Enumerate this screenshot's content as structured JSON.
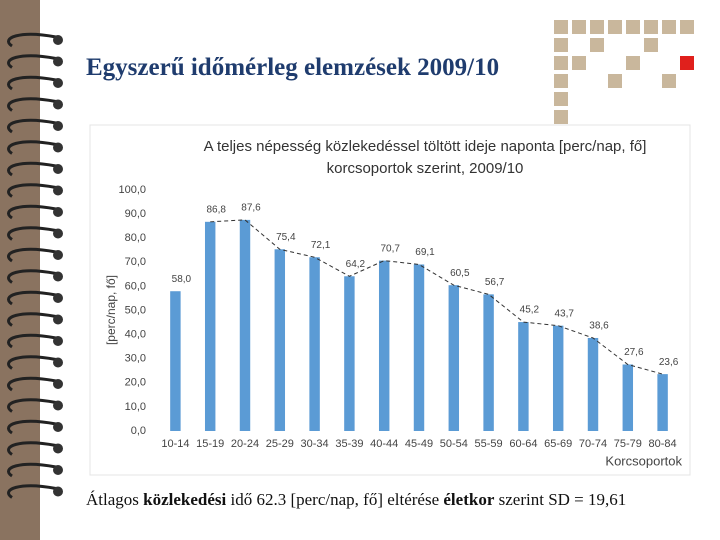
{
  "header": {
    "title": "Egyszerű időmérleg elemzések 2009/10"
  },
  "chart_data": {
    "type": "bar",
    "title": "A teljes népesség közlekedéssel töltött ideje naponta [perc/nap, fő] korcsoportok szerint, 2009/10",
    "ylabel": "[perc/nap, fő]",
    "xlabel": "Korcsoportok",
    "categories": [
      "10-14",
      "15-19",
      "20-24",
      "25-29",
      "30-34",
      "35-39",
      "40-44",
      "45-49",
      "50-54",
      "55-59",
      "60-64",
      "65-69",
      "70-74",
      "75-79",
      "80-84"
    ],
    "values": [
      58.0,
      86.8,
      87.6,
      75.4,
      72.1,
      64.2,
      70.7,
      69.1,
      60.5,
      56.7,
      45.2,
      43.7,
      38.6,
      27.6,
      23.6
    ],
    "value_labels": [
      "58,0",
      "86,8",
      "87,6",
      "75,4",
      "72,1",
      "64,2",
      "70,7",
      "69,1",
      "60,5",
      "56,7",
      "45,2",
      "43,7",
      "38,6",
      "27,6",
      "23,6"
    ],
    "color": "#5b9bd5",
    "ylim": [
      0,
      100
    ],
    "yticks": [
      {
        "value": 0,
        "label": "0,0"
      },
      {
        "value": 10,
        "label": "10,0"
      },
      {
        "value": 20,
        "label": "20,0"
      },
      {
        "value": 30,
        "label": "30,0"
      },
      {
        "value": 40,
        "label": "40,0"
      },
      {
        "value": 50,
        "label": "50,0"
      },
      {
        "value": 60,
        "label": "60,0"
      },
      {
        "value": 70,
        "label": "70,0"
      },
      {
        "value": 80,
        "label": "80,0"
      },
      {
        "value": 90,
        "label": "90,0"
      },
      {
        "value": 100,
        "label": "100,0"
      }
    ],
    "grid": false
  },
  "footer": [
    "Átlagos ",
    "közlekedési",
    " idő 62.3 [perc/nap, fő] eltérése ",
    "életkor",
    " szerint SD = 19,61"
  ]
}
